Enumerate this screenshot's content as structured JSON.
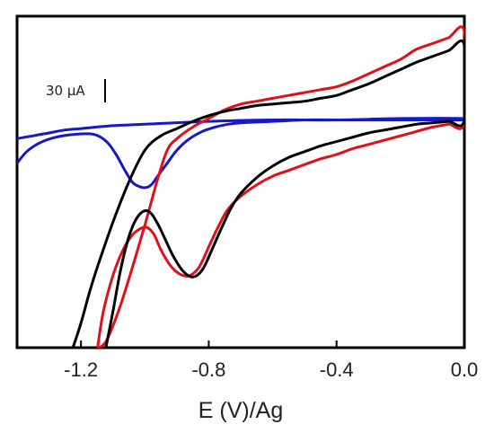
{
  "chart_data": {
    "type": "line",
    "title": "",
    "xlabel": "E (V)/Ag",
    "ylabel": "",
    "xlim": [
      -1.4,
      0.0
    ],
    "ylim": [
      -155,
      75
    ],
    "x_ticks": [
      -1.2,
      -0.8,
      -0.4,
      0.0
    ],
    "x_tick_labels": [
      "-1.2",
      "-0.8",
      "-0.4",
      "0.0"
    ],
    "scale_bar": {
      "label": "30 µA",
      "value": 30
    },
    "grid": false,
    "legend": "none",
    "series": [
      {
        "color": "#e0101a",
        "x": [
          -1.148,
          -1.13,
          -1.1,
          -1.07,
          -1.04,
          -1.01,
          -0.99,
          -0.97,
          -0.95,
          -0.92,
          -0.89,
          -0.86,
          -0.83,
          -0.8,
          -0.77,
          -0.74,
          -0.7,
          -0.65,
          -0.6,
          -0.55,
          -0.5,
          -0.45,
          -0.4,
          -0.35,
          -0.3,
          -0.25,
          -0.2,
          -0.15,
          -0.1,
          -0.05,
          0.0,
          0.0,
          -0.05,
          -0.1,
          -0.15,
          -0.2,
          -0.25,
          -0.3,
          -0.35,
          -0.4,
          -0.45,
          -0.5,
          -0.55,
          -0.6,
          -0.65,
          -0.7,
          -0.75,
          -0.8,
          -0.85,
          -0.9,
          -0.93,
          -0.96,
          -1.0,
          -1.04,
          -1.08,
          -1.12,
          -1.143
        ],
        "y": [
          -155,
          -130,
          -105,
          -88,
          -77,
          -72,
          -72,
          -77,
          -87,
          -98,
          -104,
          -105,
          -99,
          -85,
          -71,
          -59,
          -50,
          -42,
          -36,
          -32,
          -28,
          -24,
          -21,
          -17,
          -14,
          -11,
          -8,
          -5,
          -2,
          0,
          2,
          64,
          60,
          56,
          52,
          45,
          40,
          35,
          30,
          26,
          24,
          22,
          20,
          18,
          16,
          14,
          10,
          4,
          -2,
          -10,
          -18,
          -38,
          -70,
          -100,
          -128,
          -150,
          -155
        ]
      },
      {
        "color": "#000000",
        "x": [
          -1.122,
          -1.1,
          -1.075,
          -1.05,
          -1.025,
          -1.0,
          -0.98,
          -0.96,
          -0.94,
          -0.91,
          -0.88,
          -0.85,
          -0.82,
          -0.79,
          -0.76,
          -0.73,
          -0.7,
          -0.65,
          -0.6,
          -0.55,
          -0.5,
          -0.45,
          -0.4,
          -0.35,
          -0.3,
          -0.25,
          -0.2,
          -0.15,
          -0.1,
          -0.05,
          0.0,
          0.0,
          -0.05,
          -0.1,
          -0.15,
          -0.2,
          -0.25,
          -0.3,
          -0.35,
          -0.4,
          -0.45,
          -0.5,
          -0.55,
          -0.6,
          -0.65,
          -0.7,
          -0.75,
          -0.8,
          -0.85,
          -0.9,
          -0.95,
          -1.0,
          -1.05,
          -1.1,
          -1.15,
          -1.175,
          -1.2,
          -1.225
        ],
        "y": [
          -155,
          -130,
          -100,
          -78,
          -65,
          -60,
          -62,
          -69,
          -78,
          -92,
          -102,
          -106,
          -101,
          -87,
          -72,
          -58,
          -48,
          -37,
          -29,
          -23,
          -19,
          -15,
          -12,
          -9,
          -6,
          -4,
          -2,
          0,
          1,
          2,
          3,
          55,
          51,
          47,
          43,
          38,
          33,
          28,
          24,
          20,
          18,
          16,
          15,
          14,
          13,
          11,
          9,
          6,
          2,
          -3,
          -8,
          -18,
          -40,
          -68,
          -100,
          -118,
          -138,
          -155
        ]
      },
      {
        "color": "#1818c8",
        "x": [
          -1.4,
          -1.37,
          -1.33,
          -1.28,
          -1.22,
          -1.16,
          -1.12,
          -1.09,
          -1.065,
          -1.04,
          -1.02,
          -1.0,
          -0.98,
          -0.96,
          -0.93,
          -0.9,
          -0.86,
          -0.82,
          -0.78,
          -0.74,
          -0.7,
          -0.6,
          -0.5,
          -0.4,
          -0.3,
          -0.2,
          -0.1,
          0.0,
          0.0,
          -0.2,
          -0.4,
          -0.6,
          -0.8,
          -1.0,
          -1.1,
          -1.2,
          -1.25,
          -1.3,
          -1.35,
          -1.4
        ],
        "y": [
          -27,
          -19,
          -13,
          -9,
          -7,
          -7,
          -12,
          -21,
          -31,
          -40,
          -43,
          -44,
          -42,
          -36,
          -27,
          -18,
          -10,
          -5,
          -2,
          0,
          1,
          2,
          3,
          3,
          3,
          3,
          3,
          3,
          4,
          4,
          3,
          3,
          2,
          0,
          -1,
          -3,
          -4,
          -6,
          -8,
          -10
        ]
      }
    ]
  }
}
